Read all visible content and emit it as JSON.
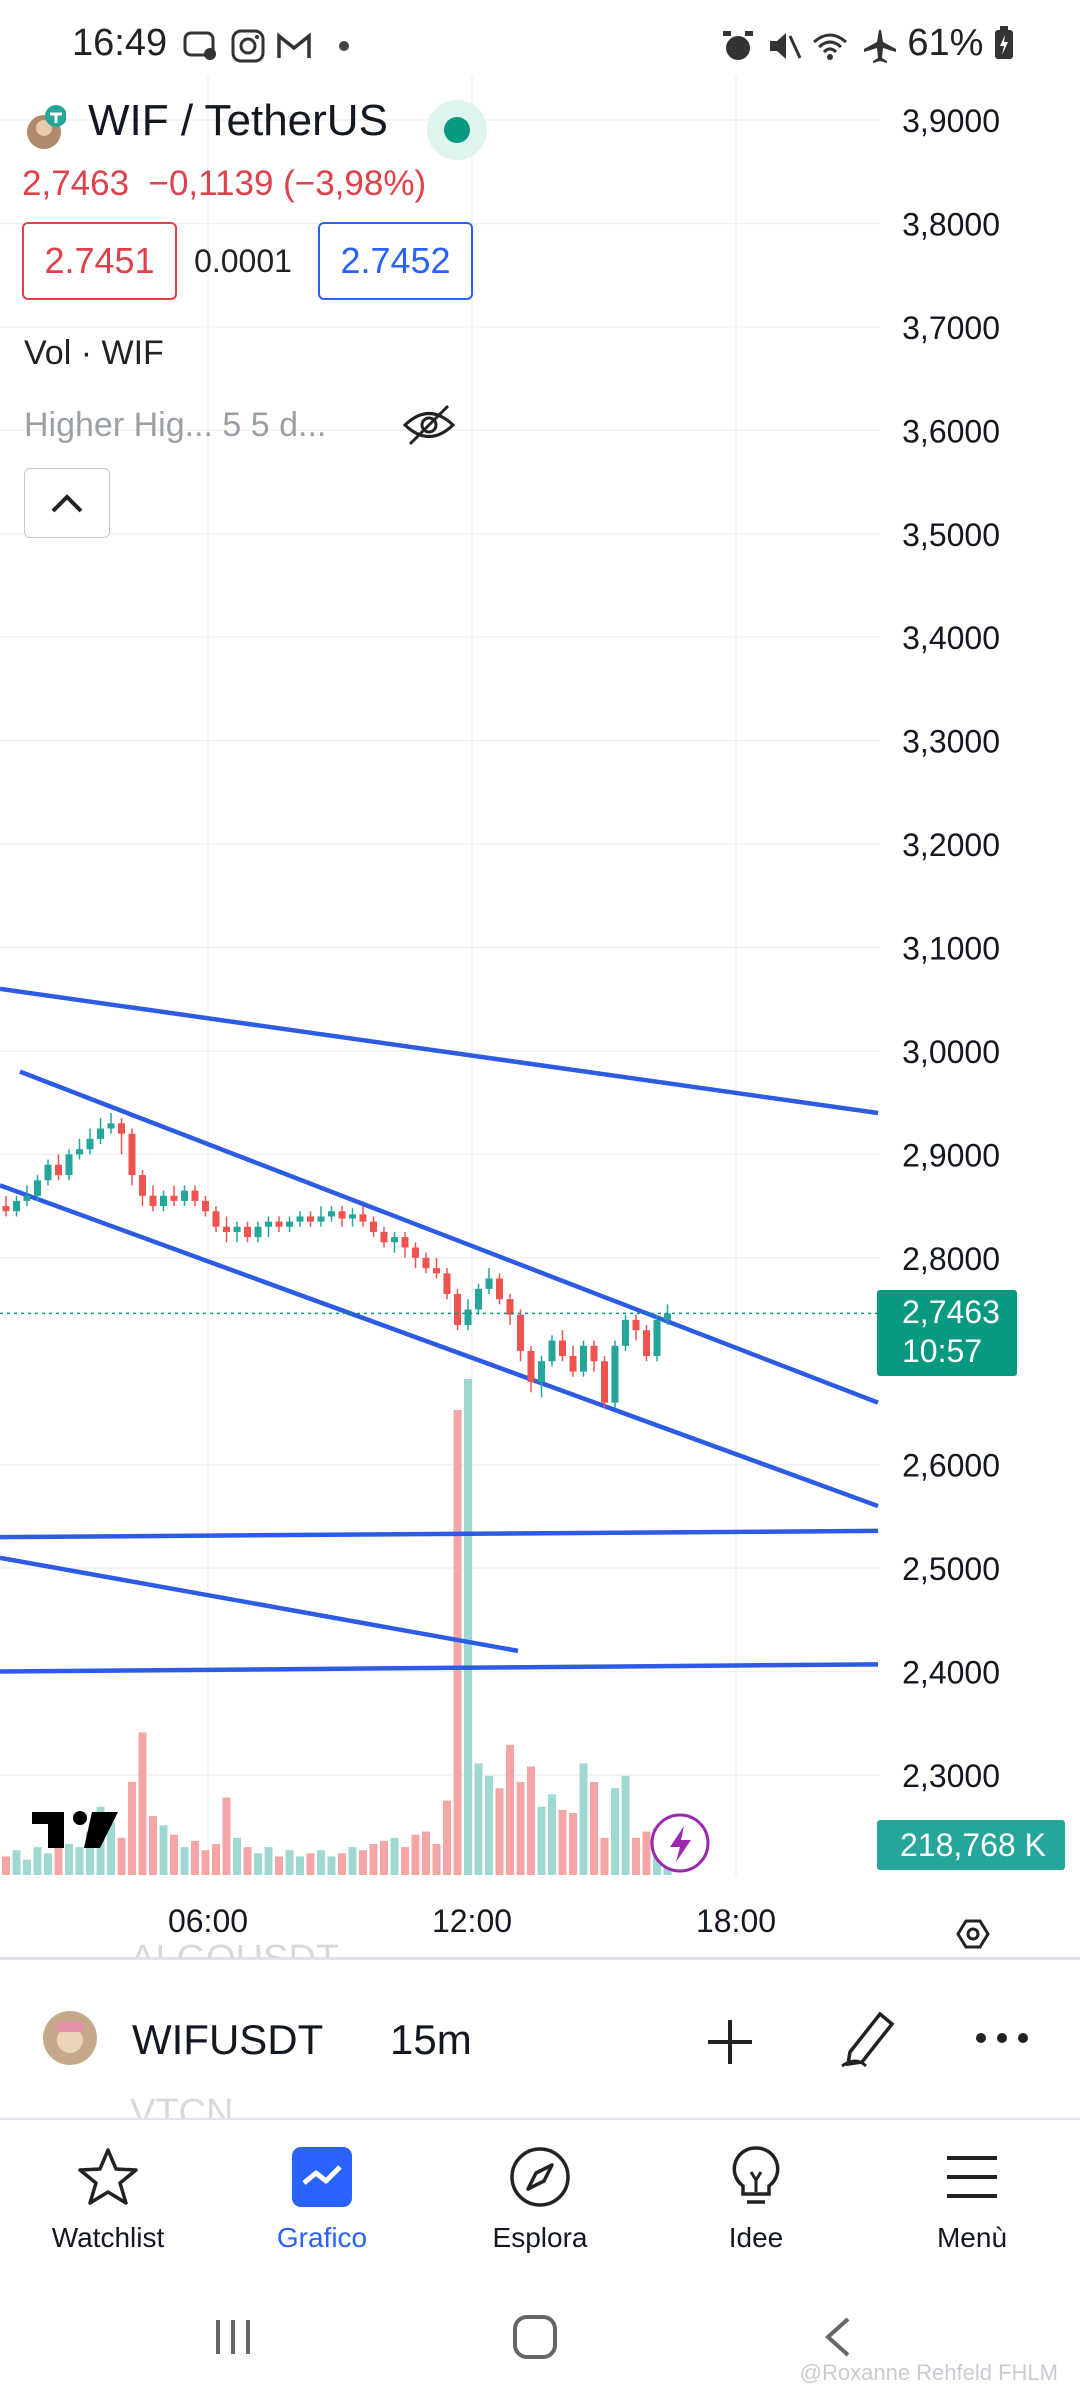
{
  "status_bar": {
    "time": "16:49",
    "battery": "61%",
    "left_icons": [
      "messages-icon",
      "instagram-icon",
      "gmail-icon",
      "dot-icon"
    ],
    "right_icons": [
      "alarm-icon",
      "mute-icon",
      "wifi-icon",
      "airplane-icon",
      "battery-icon"
    ]
  },
  "header": {
    "symbol_title": "WIF / TetherUS",
    "last_price": "2,7463",
    "change": "−0,1139 (−3,98%)",
    "bid": "2.7451",
    "spread": "0.0001",
    "ask": "2.7452",
    "volume_label": "Vol · WIF",
    "indicator_label": "Higher Hig...  5 5 d...",
    "market_status_color": "#089981"
  },
  "chart_data": {
    "type": "candlestick",
    "price_axis": [
      "3,9000",
      "3,8000",
      "3,7000",
      "3,6000",
      "3,5000",
      "3,4000",
      "3,3000",
      "3,2000",
      "3,1000",
      "3,0000",
      "2,9000",
      "2,8000",
      "2,6000",
      "2,5000",
      "2,4000",
      "2,3000"
    ],
    "time_axis": [
      "06:00",
      "12:00",
      "18:00"
    ],
    "last_price_label": "2,7463",
    "countdown": "10:57",
    "volume_label": "218,768 K",
    "ylim": [
      2.22,
      3.95
    ],
    "colors": {
      "up": "#26a69a",
      "down": "#ef5350",
      "trendline": "#2d5be3",
      "vol_up": "#9fd8d0",
      "vol_down": "#f4a6a6"
    }
  },
  "symbol_bar": {
    "symbol": "WIFUSDT",
    "interval": "15m",
    "ghost_above": "ALGOUSDT",
    "ghost_below": "VTCN"
  },
  "bottom_nav": {
    "items": [
      {
        "label": "Watchlist",
        "icon": "star-icon"
      },
      {
        "label": "Grafico",
        "icon": "chart-icon"
      },
      {
        "label": "Esplora",
        "icon": "compass-icon"
      },
      {
        "label": "Idee",
        "icon": "lightbulb-icon"
      },
      {
        "label": "Menù",
        "icon": "menu-icon"
      }
    ]
  },
  "watermark": "@Roxanne Rehfeld FHLM"
}
